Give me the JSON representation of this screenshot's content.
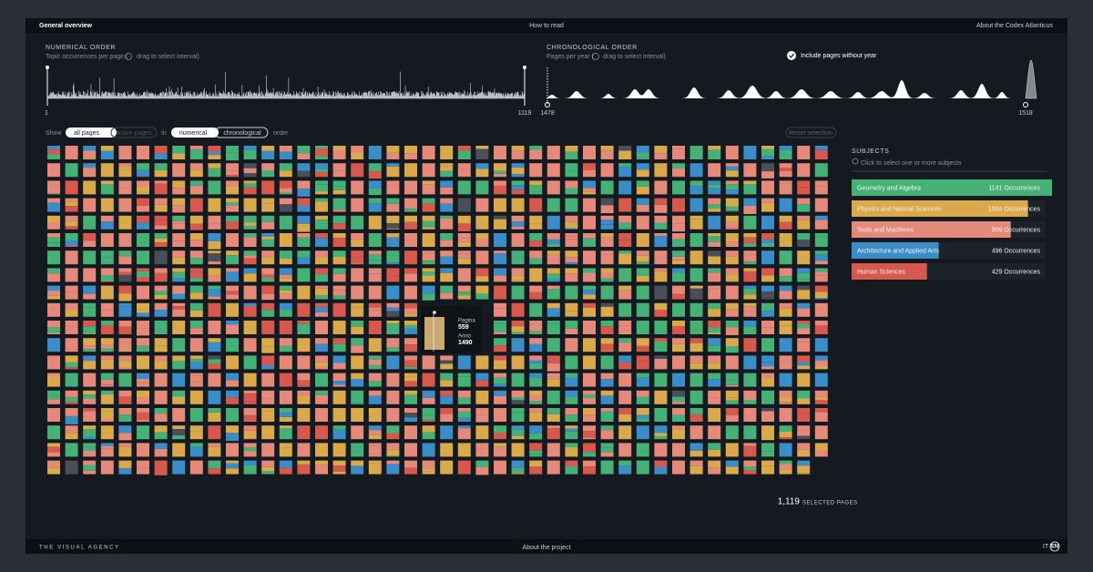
{
  "nav": {
    "left": "General overview",
    "center": "How to read",
    "right": "About the Codex Atlanticus"
  },
  "numerical": {
    "title": "NUMERICAL ORDER",
    "subtitle": "Topic occurrences per page (",
    "hint": "drag to select interval)",
    "start": "1",
    "end": "1119"
  },
  "chronological": {
    "title": "CHRONOLOGICAL ORDER",
    "subtitle": "Pages per year (",
    "hint": "drag to select interval)",
    "start": "1478",
    "end": "1518",
    "toggle": "Include pages without year"
  },
  "controls": {
    "show": "Show",
    "all": "all pages",
    "active": "active pages",
    "in": "in",
    "numerical": "numerical",
    "chronological": "chronological",
    "order": "order",
    "reset": "Reset selection"
  },
  "subjects": {
    "title": "SUBJECTS",
    "hint": "Click to select one or more subjects",
    "items": [
      {
        "name": "Geometry and Algebra",
        "value": 1141,
        "label": "1141 Occurrences",
        "color": "#45b176"
      },
      {
        "name": "Physics and Natural Sciences",
        "value": 1004,
        "label": "1004 Occurrences",
        "color": "#d9a94b"
      },
      {
        "name": "Tools and Machines",
        "value": 906,
        "label": "906 Occurrences",
        "color": "#e5897b"
      },
      {
        "name": "Architecture and Applied Arts",
        "value": 496,
        "label": "496 Occurrences",
        "color": "#3a8dc7"
      },
      {
        "name": "Human Sciences",
        "value": 429,
        "label": "429 Occurrences",
        "color": "#d7584c"
      }
    ]
  },
  "tooltip": {
    "page_label": "Pagina",
    "page": "559",
    "year_label": "Anno",
    "year": "1490"
  },
  "selection": {
    "count": "1,119",
    "label": "SELECTED PAGES"
  },
  "footer": {
    "brand": "THE VISUAL AGENCY",
    "center": "About the project",
    "lang_it": "IT",
    "lang_en": "EN"
  }
}
